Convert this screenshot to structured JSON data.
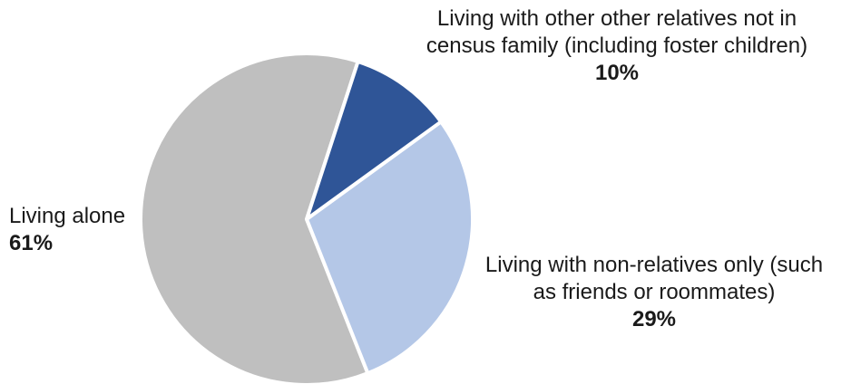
{
  "chart_data": {
    "type": "pie",
    "title": "",
    "slices": [
      {
        "label": "Living alone",
        "value": 61,
        "value_label": "61%",
        "color": "#bfbfbf"
      },
      {
        "label": "Living with non-relatives only (such as friends or roommates)",
        "value": 29,
        "value_label": "29%",
        "color": "#b4c7e7"
      },
      {
        "label": "Living with other other relatives not in census family (including foster children)",
        "value": 10,
        "value_label": "10%",
        "color": "#2f5597"
      }
    ],
    "labels_lines": [
      [
        "Living alone"
      ],
      [
        "Living with non-relatives only (such",
        "as friends or roommates)"
      ],
      [
        "Living with other other relatives not in",
        "census family (including foster children)"
      ]
    ],
    "legend": "none",
    "slice_border_color": "#ffffff"
  }
}
